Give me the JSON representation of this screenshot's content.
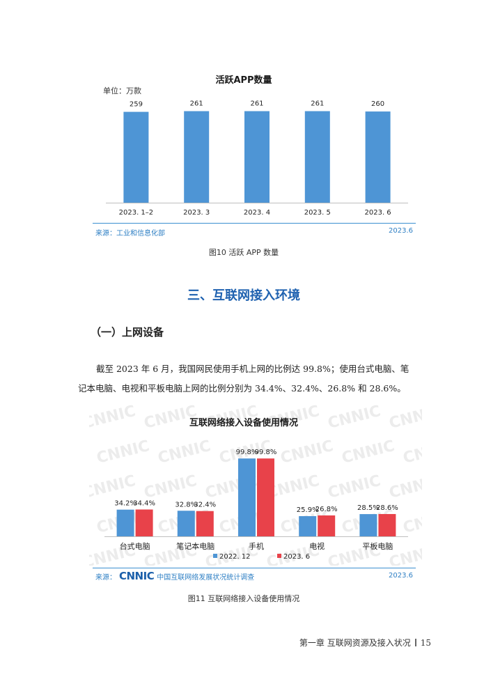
{
  "chart1": {
    "title": "活跃APP数量",
    "unit": "单位：万款",
    "source": "来源：工业和信息化部",
    "date": "2023.6",
    "caption": "图10  活跃 APP 数量",
    "color": "#4e95d5"
  },
  "section": {
    "heading": "三、互联网接入环境",
    "subheading": "（一）上网设备",
    "paragraph_line1": "截至 2023 年 6 月，我国网民使用手机上网的比例达 99.8%；使用台式电脑、笔",
    "paragraph_line2": "记本电脑、电视和平板电脑上网的比例分别为 34.4%、32.4%、26.8% 和 28.6%。"
  },
  "chart2": {
    "title": "互联网络接入设备使用情况",
    "source_prefix": "来源：",
    "logo_text": "CNNIC",
    "org": "中国互联网络发展状况统计调查",
    "date": "2023.6",
    "caption": "图11  互联网络接入设备使用情况",
    "watermark": "CNNIC",
    "colors": {
      "series1": "#4e95d5",
      "series2": "#e8424a",
      "logo": "#1b5faa"
    }
  },
  "footer": {
    "chapter": "第一章  互联网资源及接入状况",
    "page": "15"
  },
  "chart_data": [
    {
      "type": "bar",
      "title": "活跃APP数量",
      "ylabel": "单位：万款",
      "categories": [
        "2023. 1–2",
        "2023. 3",
        "2023. 4",
        "2023. 5",
        "2023. 6"
      ],
      "values": [
        259,
        261,
        261,
        261,
        260
      ],
      "data_labels": [
        "259",
        "261",
        "261",
        "261",
        "260"
      ],
      "ylim": [
        0,
        280
      ],
      "grid": false
    },
    {
      "type": "bar",
      "title": "互联网络接入设备使用情况",
      "categories": [
        "台式电脑",
        "笔记本电脑",
        "手机",
        "电视",
        "平板电脑"
      ],
      "series": [
        {
          "name": "2022. 12",
          "values": [
            34.2,
            32.8,
            99.8,
            25.9,
            28.5
          ],
          "labels": [
            "34.2%",
            "32.8%",
            "99.8%",
            "25.9%",
            "28.5%"
          ]
        },
        {
          "name": "2023. 6",
          "values": [
            34.4,
            32.4,
            99.8,
            26.8,
            28.6
          ],
          "labels": [
            "34.4%",
            "32.4%",
            "99.8%",
            "26.8%",
            "28.6%"
          ]
        }
      ],
      "ylim": [
        0,
        100
      ],
      "legend": "bottom",
      "grid": false
    }
  ]
}
